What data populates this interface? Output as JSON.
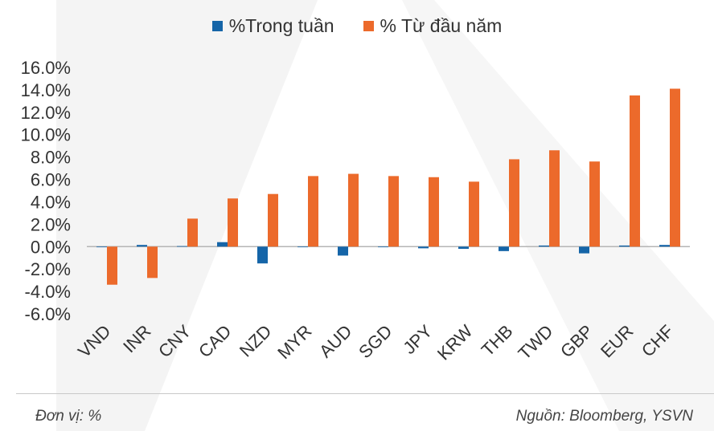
{
  "colors": {
    "weekly": "#1565a8",
    "ytd": "#ec6a2b",
    "axis": "#b5b5b5",
    "text": "#333333",
    "background_shape": "#f2f2f2"
  },
  "legend": {
    "weekly_label": "%Trong tuần",
    "ytd_label": "% Từ đầu năm"
  },
  "footer": {
    "unit": "Đơn vị: %",
    "source": "Nguồn: Bloomberg, YSVN"
  },
  "chart_data": {
    "type": "bar",
    "title": "",
    "xlabel": "",
    "ylabel": "",
    "ylim": [
      -6,
      16
    ],
    "yticks": [
      16,
      14,
      12,
      10,
      8,
      6,
      4,
      2,
      0,
      -2,
      -4,
      -6
    ],
    "ytick_labels": [
      "16.0%",
      "14.0%",
      "12.0%",
      "10.0%",
      "8.0%",
      "6.0%",
      "4.0%",
      "2.0%",
      "0.0%",
      "-2.0%",
      "-4.0%",
      "-6.0%"
    ],
    "categories": [
      "VND",
      "INR",
      "CNY",
      "CAD",
      "NZD",
      "MYR",
      "AUD",
      "SGD",
      "JPY",
      "KRW",
      "THB",
      "TWD",
      "GBP",
      "EUR",
      "CHF"
    ],
    "series": [
      {
        "name": "%Trong tuần",
        "key": "weekly",
        "values": [
          0.0,
          0.15,
          0.05,
          0.4,
          -1.5,
          -0.05,
          -0.8,
          -0.05,
          -0.15,
          -0.2,
          -0.4,
          0.1,
          -0.6,
          0.1,
          0.15
        ]
      },
      {
        "name": "% Từ đầu năm",
        "key": "ytd",
        "values": [
          -3.4,
          -2.8,
          2.5,
          4.3,
          4.7,
          6.3,
          6.5,
          6.3,
          6.2,
          5.8,
          7.8,
          8.6,
          7.6,
          13.5,
          14.1
        ]
      }
    ],
    "legend_position": "top-center",
    "grid": false
  }
}
